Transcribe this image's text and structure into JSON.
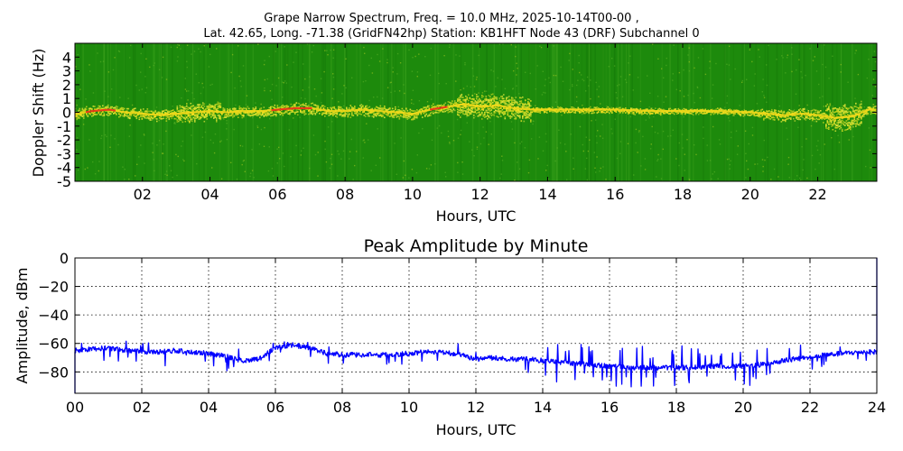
{
  "figure": {
    "title_line1": "Grape Narrow Spectrum, Freq. = 10.0 MHz, 2025-10-14T00-00 ,",
    "title_line2": "Lat.  42.65, Long. -71.38 (GridFN42hp) Station: KB1HFT Node 43 (DRF) Subchannel 0"
  },
  "chart_data": [
    {
      "type": "heatmap",
      "xlabel": "Hours, UTC",
      "ylabel": "Doppler Shift (Hz)",
      "x_tick_labels": [
        "02",
        "04",
        "06",
        "08",
        "10",
        "12",
        "14",
        "16",
        "18",
        "20",
        "22"
      ],
      "x_ticks": [
        2,
        4,
        6,
        8,
        10,
        12,
        14,
        16,
        18,
        20,
        22
      ],
      "y_tick_labels": [
        "4",
        "3",
        "2",
        "1",
        "0",
        "-1",
        "-2",
        "-3",
        "-4",
        "-5"
      ],
      "y_ticks": [
        4,
        3,
        2,
        1,
        0,
        -1,
        -2,
        -3,
        -4,
        -5
      ],
      "xlim": [
        0,
        23.75
      ],
      "ylim": [
        -5,
        5
      ],
      "colors": {
        "background": "#1d8a0c",
        "mid": "#d8e020",
        "peak": "#f0301a"
      },
      "doppler_trace_hz": [
        [
          0.0,
          -0.1
        ],
        [
          0.5,
          0.1
        ],
        [
          1.0,
          0.2
        ],
        [
          1.5,
          0.0
        ],
        [
          2.0,
          -0.1
        ],
        [
          2.5,
          -0.2
        ],
        [
          3.0,
          -0.1
        ],
        [
          3.5,
          0.0
        ],
        [
          4.0,
          0.1
        ],
        [
          4.5,
          0.0
        ],
        [
          5.0,
          0.1
        ],
        [
          5.5,
          0.1
        ],
        [
          6.0,
          0.2
        ],
        [
          6.5,
          0.3
        ],
        [
          7.0,
          0.3
        ],
        [
          7.5,
          0.1
        ],
        [
          8.0,
          0.1
        ],
        [
          8.5,
          0.2
        ],
        [
          9.0,
          0.1
        ],
        [
          9.5,
          0.0
        ],
        [
          10.0,
          -0.1
        ],
        [
          10.5,
          0.2
        ],
        [
          11.0,
          0.4
        ],
        [
          11.5,
          0.6
        ],
        [
          12.0,
          0.4
        ],
        [
          12.5,
          0.5
        ],
        [
          13.0,
          0.3
        ],
        [
          13.5,
          0.2
        ],
        [
          14.0,
          0.2
        ],
        [
          15.0,
          0.2
        ],
        [
          16.0,
          0.2
        ],
        [
          17.0,
          0.1
        ],
        [
          18.0,
          0.1
        ],
        [
          19.0,
          0.1
        ],
        [
          20.0,
          0.0
        ],
        [
          20.5,
          -0.1
        ],
        [
          21.0,
          -0.2
        ],
        [
          21.5,
          -0.1
        ],
        [
          22.0,
          -0.2
        ],
        [
          22.5,
          -0.4
        ],
        [
          23.0,
          -0.3
        ],
        [
          23.5,
          0.2
        ]
      ]
    },
    {
      "type": "line",
      "title": "Peak Amplitude by Minute",
      "xlabel": "Hours, UTC",
      "ylabel": "Amplitude, dBm",
      "xlim": [
        0,
        24
      ],
      "ylim": [
        -95,
        0
      ],
      "x_ticks": [
        0,
        2,
        4,
        6,
        8,
        10,
        12,
        14,
        16,
        18,
        20,
        22,
        24
      ],
      "x_tick_labels": [
        "00",
        "02",
        "04",
        "06",
        "08",
        "10",
        "12",
        "14",
        "16",
        "18",
        "20",
        "22",
        "24"
      ],
      "y_ticks": [
        0,
        -20,
        -40,
        -60,
        -80
      ],
      "y_tick_labels": [
        "0",
        "−20",
        "−40",
        "−60",
        "−80"
      ],
      "grid": true,
      "line_color": "#0000ff",
      "series": [
        {
          "baseline_dbm": [
            [
              0.0,
              -65
            ],
            [
              0.5,
              -64
            ],
            [
              1.0,
              -63
            ],
            [
              1.5,
              -65
            ],
            [
              2.0,
              -66
            ],
            [
              2.5,
              -66
            ],
            [
              3.0,
              -65
            ],
            [
              3.5,
              -66
            ],
            [
              4.0,
              -67
            ],
            [
              4.5,
              -69
            ],
            [
              5.0,
              -72
            ],
            [
              5.5,
              -71
            ],
            [
              6.0,
              -63
            ],
            [
              6.5,
              -61
            ],
            [
              7.0,
              -63
            ],
            [
              7.5,
              -67
            ],
            [
              8.0,
              -68
            ],
            [
              8.5,
              -68
            ],
            [
              9.0,
              -68
            ],
            [
              9.5,
              -68
            ],
            [
              10.0,
              -67
            ],
            [
              10.5,
              -66
            ],
            [
              11.0,
              -66
            ],
            [
              11.5,
              -68
            ],
            [
              12.0,
              -71
            ],
            [
              12.5,
              -70
            ],
            [
              13.0,
              -71
            ],
            [
              13.5,
              -71
            ],
            [
              14.0,
              -72
            ],
            [
              14.5,
              -73
            ],
            [
              15.0,
              -74
            ],
            [
              15.5,
              -75
            ],
            [
              16.0,
              -76
            ],
            [
              16.5,
              -77
            ],
            [
              17.0,
              -77
            ],
            [
              17.5,
              -77
            ],
            [
              18.0,
              -77
            ],
            [
              18.5,
              -77
            ],
            [
              19.0,
              -76
            ],
            [
              19.5,
              -76
            ],
            [
              20.0,
              -76
            ],
            [
              20.5,
              -75
            ],
            [
              21.0,
              -73
            ],
            [
              21.5,
              -71
            ],
            [
              22.0,
              -70
            ],
            [
              22.5,
              -68
            ],
            [
              23.0,
              -67
            ],
            [
              23.5,
              -66
            ],
            [
              24.0,
              -66
            ]
          ]
        }
      ]
    }
  ]
}
